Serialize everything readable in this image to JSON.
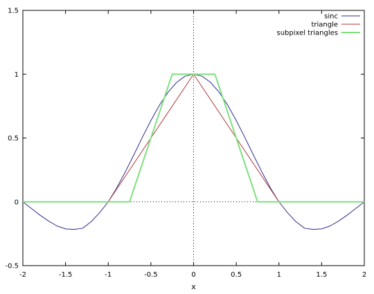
{
  "chart_data": {
    "type": "line",
    "title": "",
    "xlabel": "x",
    "ylabel": "",
    "xlim": [
      -2,
      2
    ],
    "ylim": [
      -0.5,
      1.5
    ],
    "x_ticks": [
      -2,
      -1.5,
      -1,
      -0.5,
      0,
      0.5,
      1,
      1.5,
      2
    ],
    "x_tick_labels": [
      "-2",
      "-1.5",
      "-1",
      "-0.5",
      "0",
      "0.5",
      "1",
      "1.5",
      "2"
    ],
    "y_ticks": [
      -0.5,
      0,
      0.5,
      1,
      1.5
    ],
    "y_tick_labels": [
      "-0.5",
      "0",
      "0.5",
      "1",
      "1.5"
    ],
    "grid": false,
    "zero_axes": "dotted",
    "legend": {
      "placement": "top-right"
    },
    "series": [
      {
        "name": "sinc",
        "color": "#2b2b8f",
        "x": [
          -2,
          -1.9,
          -1.8,
          -1.7,
          -1.6,
          -1.5,
          -1.4,
          -1.3,
          -1.2,
          -1.1,
          -1.0,
          -0.9,
          -0.8,
          -0.7,
          -0.6,
          -0.5,
          -0.4,
          -0.3,
          -0.2,
          -0.1,
          0,
          0.1,
          0.2,
          0.3,
          0.4,
          0.5,
          0.6,
          0.7,
          0.8,
          0.9,
          1.0,
          1.1,
          1.2,
          1.3,
          1.4,
          1.5,
          1.6,
          1.7,
          1.8,
          1.9,
          2
        ],
        "y": [
          0,
          -0.052,
          -0.104,
          -0.15,
          -0.189,
          -0.212,
          -0.216,
          -0.207,
          -0.156,
          -0.085,
          0,
          0.109,
          0.234,
          0.368,
          0.505,
          0.637,
          0.757,
          0.858,
          0.935,
          0.984,
          1,
          0.984,
          0.935,
          0.858,
          0.757,
          0.637,
          0.505,
          0.368,
          0.234,
          0.109,
          0,
          -0.085,
          -0.156,
          -0.207,
          -0.216,
          -0.212,
          -0.189,
          -0.15,
          -0.104,
          -0.052,
          0
        ]
      },
      {
        "name": "triangle",
        "color": "#b23a3a",
        "x": [
          -2,
          -1,
          0,
          1,
          2
        ],
        "y": [
          0,
          0,
          1,
          0,
          0
        ]
      },
      {
        "name": "subpixel triangles",
        "color": "#7ee07e",
        "x": [
          -2,
          -0.75,
          -0.25,
          0.25,
          0.75,
          2
        ],
        "y": [
          0,
          0,
          1,
          1,
          0,
          0
        ]
      }
    ]
  }
}
